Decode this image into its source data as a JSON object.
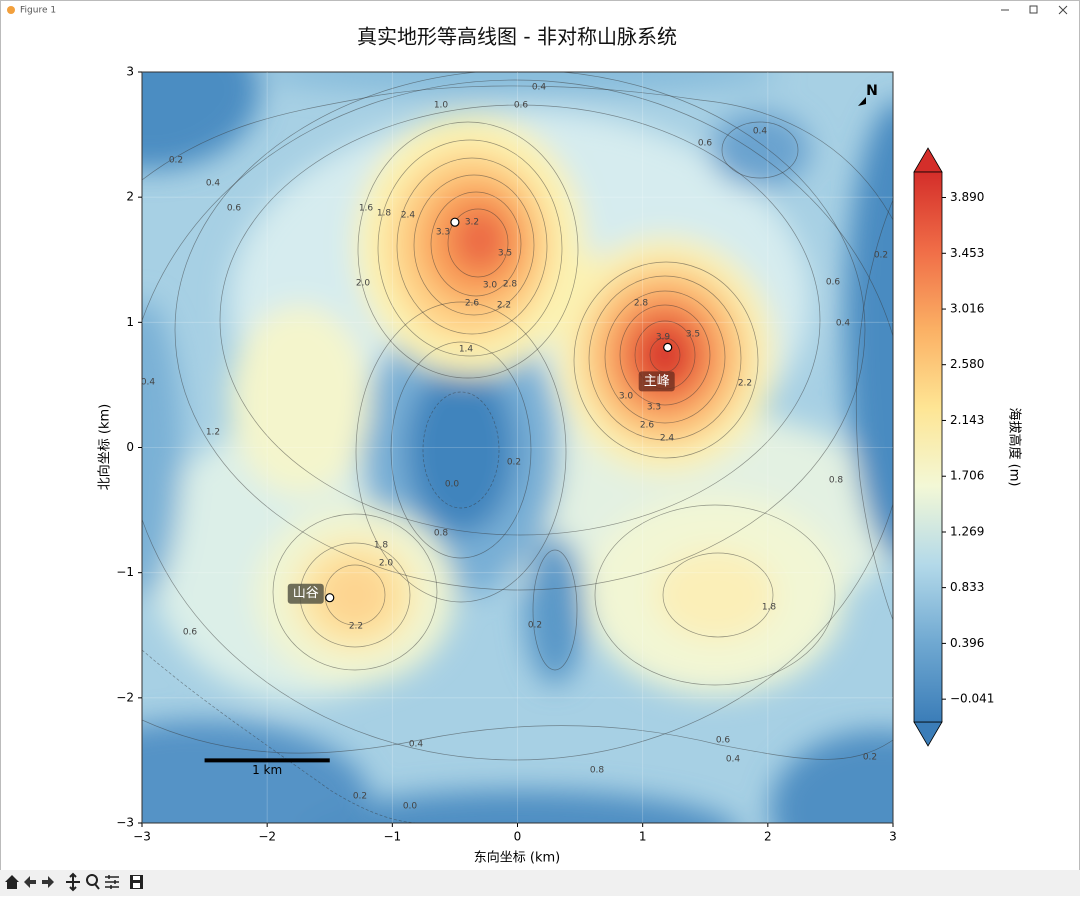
{
  "window": {
    "title": "Figure 1"
  },
  "chart_data": {
    "type": "contour",
    "title": "真实地形等高线图 - 非对称山脉系统",
    "x_label": "东向坐标 (km)",
    "y_label": "北向坐标 (km)",
    "xlim": [
      -3,
      3
    ],
    "ylim": [
      -3,
      3
    ],
    "xticks": [
      {
        "value": -3,
        "label": "−3"
      },
      {
        "value": -2,
        "label": "−2"
      },
      {
        "value": -1,
        "label": "−1"
      },
      0,
      1,
      2,
      3
    ],
    "yticks": [
      {
        "value": -3,
        "label": "−3"
      },
      {
        "value": -2,
        "label": "−2"
      },
      {
        "value": -1,
        "label": "−1"
      },
      0,
      1,
      2,
      3
    ],
    "grid": true,
    "colorbar": {
      "label": "海拔高度 (m)",
      "clim": [
        -0.22,
        4.09
      ],
      "colors": [
        "#3b7db8",
        "#6fa8d1",
        "#b3d9e9",
        "#f3f8d6",
        "#fee594",
        "#fbb064",
        "#f06d47",
        "#d42e2a"
      ],
      "ticks": [
        {
          "value": -0.041,
          "label": "−0.041"
        },
        0.396,
        0.833,
        1.269,
        1.706,
        2.143,
        {
          "value": 2.58,
          "label": "2.580"
        },
        3.016,
        3.453,
        {
          "value": 3.89,
          "label": "3.890"
        }
      ]
    },
    "points": [
      {
        "x": -0.5,
        "y": 1.8
      },
      {
        "x": 1.2,
        "y": 0.8,
        "label": "主峰"
      },
      {
        "x": -1.5,
        "y": -1.2,
        "label": "山谷"
      }
    ],
    "scale_bar": {
      "length": 1,
      "label": "1 km"
    },
    "north_label": "N",
    "contour_labels": [
      0.4,
      {
        "value": 1,
        "label": "1.0"
      },
      0.6,
      0.2,
      0.4,
      0.6,
      1.6,
      1.8,
      2.4,
      3.3,
      3.2,
      3.5,
      {
        "value": 3,
        "label": "3.0"
      },
      2.8,
      2.6,
      2.2,
      {
        "value": 2,
        "label": "2.0"
      },
      0.6,
      0.4,
      0.2,
      0.6,
      0.4,
      2.8,
      3.9,
      3.5,
      2.2,
      {
        "value": 3,
        "label": "3.0"
      },
      3.3,
      2.6,
      2.4,
      1.4,
      0.4,
      1.2,
      0.2,
      {
        "value": 0,
        "label": "0.0"
      },
      0.8,
      0.8,
      1.8,
      {
        "value": 2,
        "label": "2.0"
      },
      2.2,
      1.8,
      0.2,
      0.6,
      0.4,
      0.6,
      0.4,
      0.2,
      0.8,
      0.2,
      {
        "value": 0,
        "label": "0.0"
      }
    ]
  }
}
